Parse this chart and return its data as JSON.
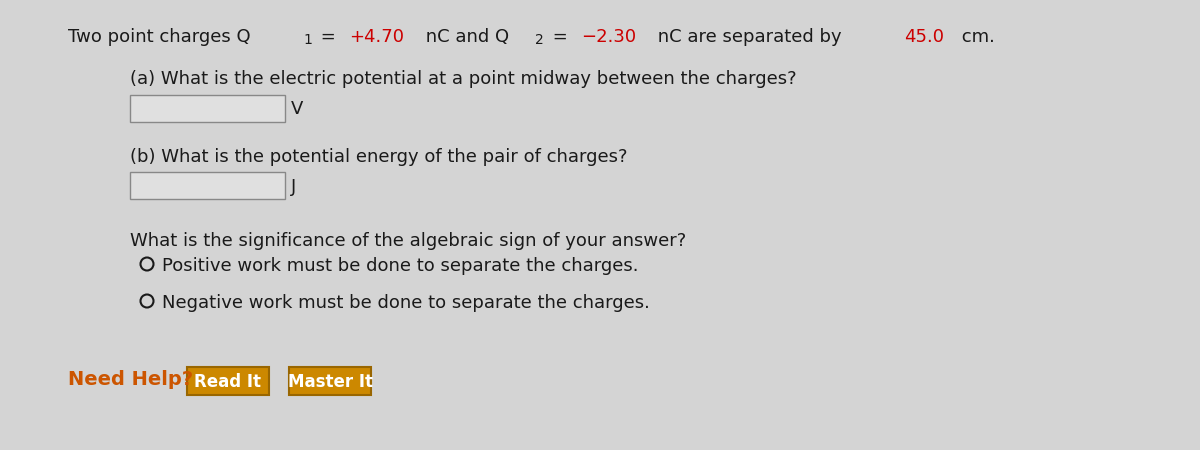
{
  "background_color": "#d4d4d4",
  "q1_color": "#cc0000",
  "q2_color": "#cc0000",
  "dist_color": "#cc0000",
  "part_a_label": "(a) What is the electric potential at a point midway between the charges?",
  "part_a_unit": "V",
  "part_b_label": "(b) What is the potential energy of the pair of charges?",
  "part_b_unit": "J",
  "significance_label": "What is the significance of the algebraic sign of your answer?",
  "option1": "Positive work must be done to separate the charges.",
  "option2": "Negative work must be done to separate the charges.",
  "need_help_color": "#cc5500",
  "need_help_text": "Need Help?",
  "btn1_text": "Read It",
  "btn2_text": "Master It",
  "btn_bg": "#cc8800",
  "btn_border": "#996600",
  "input_box_color": "#e0e0e0",
  "input_box_border": "#888888",
  "text_color": "#1a1a1a",
  "font_size_main": 13,
  "title_segments": [
    {
      "text": "Two point charges Q",
      "color": "#1a1a1a",
      "sub": false
    },
    {
      "text": "1",
      "color": "#1a1a1a",
      "sub": true
    },
    {
      "text": " = ",
      "color": "#1a1a1a",
      "sub": false
    },
    {
      "text": "+4.70",
      "color": "#cc0000",
      "sub": false
    },
    {
      "text": " nC and Q",
      "color": "#1a1a1a",
      "sub": false
    },
    {
      "text": "2",
      "color": "#1a1a1a",
      "sub": true
    },
    {
      "text": " = ",
      "color": "#1a1a1a",
      "sub": false
    },
    {
      "text": "−2.30",
      "color": "#cc0000",
      "sub": false
    },
    {
      "text": " nC are separated by ",
      "color": "#1a1a1a",
      "sub": false
    },
    {
      "text": "45.0",
      "color": "#cc0000",
      "sub": false
    },
    {
      "text": " cm.",
      "color": "#1a1a1a",
      "sub": false
    }
  ]
}
